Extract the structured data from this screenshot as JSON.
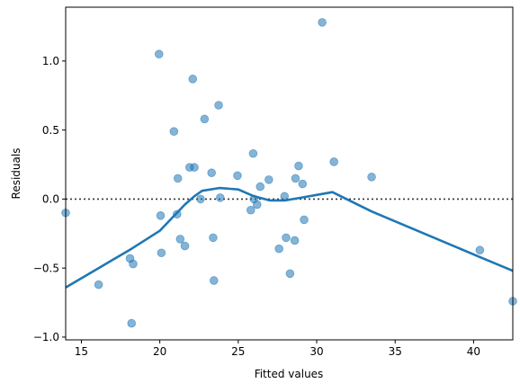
{
  "chart_data": {
    "type": "scatter",
    "xlabel": "Fitted values",
    "ylabel": "Residuals",
    "xlim": [
      14.0,
      42.5
    ],
    "ylim": [
      -1.02,
      1.39
    ],
    "xticks": [
      15,
      20,
      25,
      30,
      35,
      40
    ],
    "yticks": [
      -1.0,
      -0.5,
      0.0,
      0.5,
      1.0
    ],
    "xtick_labels": [
      "15",
      "20",
      "25",
      "30",
      "35",
      "40"
    ],
    "ytick_labels": [
      "−1.0",
      "−0.5",
      "0.0",
      "0.5",
      "1.0"
    ],
    "reference_line": {
      "y": 0,
      "style": "dotted",
      "color": "#333333"
    },
    "point_color": "#1f77b4",
    "line_color": "#1f77b4",
    "points": [
      {
        "x": 14.0,
        "y": -0.1
      },
      {
        "x": 16.1,
        "y": -0.62
      },
      {
        "x": 18.1,
        "y": -0.43
      },
      {
        "x": 18.2,
        "y": -0.9
      },
      {
        "x": 18.3,
        "y": -0.47
      },
      {
        "x": 19.95,
        "y": 1.05
      },
      {
        "x": 20.05,
        "y": -0.12
      },
      {
        "x": 20.1,
        "y": -0.39
      },
      {
        "x": 20.9,
        "y": 0.49
      },
      {
        "x": 21.1,
        "y": -0.11
      },
      {
        "x": 21.15,
        "y": 0.15
      },
      {
        "x": 21.3,
        "y": -0.29
      },
      {
        "x": 21.6,
        "y": -0.34
      },
      {
        "x": 21.9,
        "y": 0.23
      },
      {
        "x": 22.1,
        "y": 0.87
      },
      {
        "x": 22.2,
        "y": 0.23
      },
      {
        "x": 22.6,
        "y": 0.0
      },
      {
        "x": 22.85,
        "y": 0.58
      },
      {
        "x": 23.3,
        "y": 0.19
      },
      {
        "x": 23.4,
        "y": -0.28
      },
      {
        "x": 23.45,
        "y": -0.59
      },
      {
        "x": 23.75,
        "y": 0.68
      },
      {
        "x": 23.85,
        "y": 0.01
      },
      {
        "x": 24.95,
        "y": 0.17
      },
      {
        "x": 25.8,
        "y": -0.08
      },
      {
        "x": 25.95,
        "y": 0.33
      },
      {
        "x": 26.0,
        "y": 0.0
      },
      {
        "x": 26.2,
        "y": -0.04
      },
      {
        "x": 26.4,
        "y": 0.09
      },
      {
        "x": 26.95,
        "y": 0.14
      },
      {
        "x": 27.6,
        "y": -0.36
      },
      {
        "x": 27.95,
        "y": 0.02
      },
      {
        "x": 28.05,
        "y": -0.28
      },
      {
        "x": 28.3,
        "y": -0.54
      },
      {
        "x": 28.6,
        "y": -0.3
      },
      {
        "x": 28.65,
        "y": 0.15
      },
      {
        "x": 28.85,
        "y": 0.24
      },
      {
        "x": 29.1,
        "y": 0.11
      },
      {
        "x": 29.2,
        "y": -0.15
      },
      {
        "x": 30.35,
        "y": 1.28
      },
      {
        "x": 31.1,
        "y": 0.27
      },
      {
        "x": 33.5,
        "y": 0.16
      },
      {
        "x": 40.4,
        "y": -0.37
      },
      {
        "x": 42.5,
        "y": -0.74
      }
    ],
    "lowess": [
      {
        "x": 14.0,
        "y": -0.64
      },
      {
        "x": 16.1,
        "y": -0.5
      },
      {
        "x": 18.2,
        "y": -0.36
      },
      {
        "x": 20.0,
        "y": -0.23
      },
      {
        "x": 21.6,
        "y": -0.04
      },
      {
        "x": 22.2,
        "y": 0.02
      },
      {
        "x": 22.7,
        "y": 0.06
      },
      {
        "x": 23.8,
        "y": 0.08
      },
      {
        "x": 25.0,
        "y": 0.07
      },
      {
        "x": 26.0,
        "y": 0.02
      },
      {
        "x": 27.0,
        "y": -0.01
      },
      {
        "x": 28.0,
        "y": -0.01
      },
      {
        "x": 29.0,
        "y": 0.01
      },
      {
        "x": 30.0,
        "y": 0.03
      },
      {
        "x": 31.0,
        "y": 0.05
      },
      {
        "x": 33.5,
        "y": -0.09
      },
      {
        "x": 40.4,
        "y": -0.42
      },
      {
        "x": 42.5,
        "y": -0.52
      }
    ]
  }
}
